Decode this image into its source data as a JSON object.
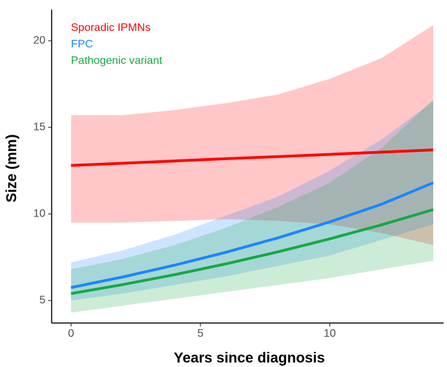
{
  "chart_data": {
    "type": "line",
    "x_label": "Years since diagnosis",
    "y_label": "Size (mm)",
    "x": [
      0,
      2,
      4,
      6,
      8,
      10,
      12,
      14
    ],
    "series": [
      {
        "name": "Sporadic IPMNs",
        "color": "#ff0000",
        "values": [
          12.8,
          12.93,
          13.06,
          13.19,
          13.31,
          13.44,
          13.57,
          13.7
        ],
        "lower": [
          9.5,
          9.5,
          9.6,
          9.7,
          9.6,
          9.4,
          8.9,
          8.2
        ],
        "upper": [
          15.7,
          15.7,
          16.0,
          16.4,
          16.9,
          17.8,
          19.0,
          20.9
        ]
      },
      {
        "name": "FPC",
        "color": "#1a85ff",
        "values": [
          5.75,
          6.36,
          7.04,
          7.79,
          8.62,
          9.54,
          10.56,
          11.8
        ],
        "lower": [
          5.0,
          5.4,
          5.9,
          6.4,
          7.0,
          7.6,
          8.5,
          9.4
        ],
        "upper": [
          7.2,
          7.9,
          8.8,
          9.9,
          11.0,
          12.5,
          14.3,
          16.5
        ]
      },
      {
        "name": "Pathogenic variant",
        "color": "#16a843",
        "values": [
          5.4,
          5.92,
          6.49,
          7.12,
          7.81,
          8.56,
          9.37,
          10.25
        ],
        "lower": [
          4.3,
          4.7,
          5.1,
          5.5,
          5.9,
          6.3,
          6.8,
          7.3
        ],
        "upper": [
          6.8,
          7.4,
          8.2,
          9.2,
          10.4,
          11.8,
          13.8,
          16.6
        ]
      }
    ],
    "xlim": [
      -0.75,
      14.4
    ],
    "xticks": [
      0,
      5,
      10
    ],
    "ylim": [
      3.7,
      21.8
    ],
    "yticks": [
      5,
      10,
      15,
      20
    ],
    "grid": false,
    "legend": "top-left",
    "band_opacity": 0.22
  }
}
